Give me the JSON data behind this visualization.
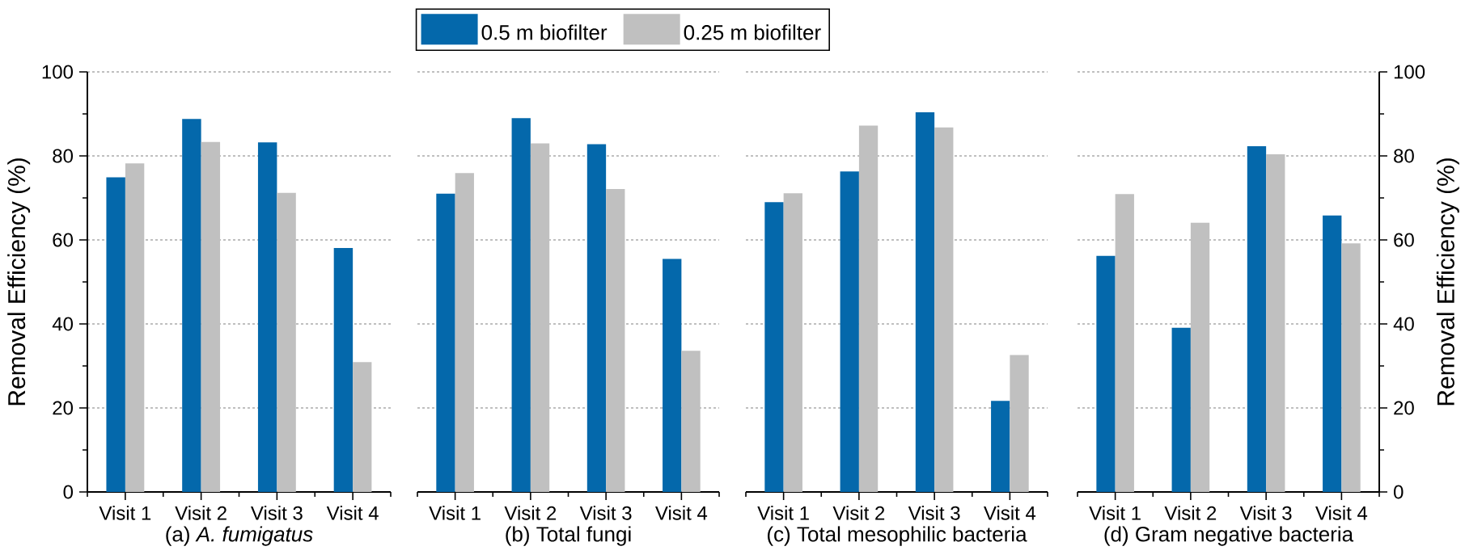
{
  "chart_data": [
    {
      "type": "bar",
      "xlabel": "(a) *A. fumigatus*",
      "ylabel": "Removal Efficiency (%)",
      "categories": [
        "Visit 1",
        "Visit 2",
        "Visit 3",
        "Visit 4"
      ],
      "ylim": [
        0,
        100
      ],
      "yticks": [
        0,
        20,
        40,
        60,
        80,
        100
      ],
      "grid": "y",
      "legend": "top",
      "series": [
        {
          "name": "0.5 m biofilter",
          "color": "#0468ab",
          "values": [
            74.9,
            88.8,
            83.2,
            58.1
          ]
        },
        {
          "name": "0.25 m biofilter",
          "color": "#c0c0c0",
          "values": [
            78.2,
            83.3,
            71.2,
            30.9
          ]
        }
      ]
    },
    {
      "type": "bar",
      "xlabel": "(b) Total fungi",
      "categories": [
        "Visit 1",
        "Visit 2",
        "Visit 3",
        "Visit 4"
      ],
      "ylim": [
        0,
        100
      ],
      "yticks": [
        0,
        20,
        40,
        60,
        80,
        100
      ],
      "grid": "y",
      "tick_labels": "x",
      "series": [
        {
          "color": "#0468ab",
          "values": [
            71.0,
            89.0,
            82.8,
            55.5
          ]
        },
        {
          "color": "#c0c0c0",
          "values": [
            75.9,
            83.0,
            72.1,
            33.6
          ]
        }
      ]
    },
    {
      "type": "bar",
      "xlabel": "(c) Total mesophilic bacteria",
      "categories": [
        "Visit 1",
        "Visit 2",
        "Visit 3",
        "Visit 4"
      ],
      "ylim": [
        0,
        100
      ],
      "yticks": [
        0,
        20,
        40,
        60,
        80,
        100
      ],
      "grid": "y",
      "tick_labels": "x",
      "series": [
        {
          "color": "#0468ab",
          "values": [
            69.0,
            76.3,
            90.4,
            21.7
          ]
        },
        {
          "color": "#c0c0c0",
          "values": [
            71.1,
            87.2,
            86.8,
            32.6
          ]
        }
      ]
    },
    {
      "type": "bar",
      "xlabel": "(d) Gram negative bacteria",
      "y2label": "Removal Efficiency (%)",
      "categories": [
        "Visit 1",
        "Visit 2",
        "Visit 3",
        "Visit 4"
      ],
      "y2lim": [
        0,
        100
      ],
      "y2ticks": [
        0,
        20,
        40,
        60,
        80,
        100
      ],
      "grid": "y",
      "series": [
        {
          "color": "#0468ab",
          "axis": "y2",
          "values": [
            56.2,
            39.1,
            82.3,
            65.8
          ]
        },
        {
          "color": "#c0c0c0",
          "axis": "y2",
          "values": [
            70.9,
            64.1,
            80.4,
            59.2
          ]
        }
      ]
    }
  ]
}
